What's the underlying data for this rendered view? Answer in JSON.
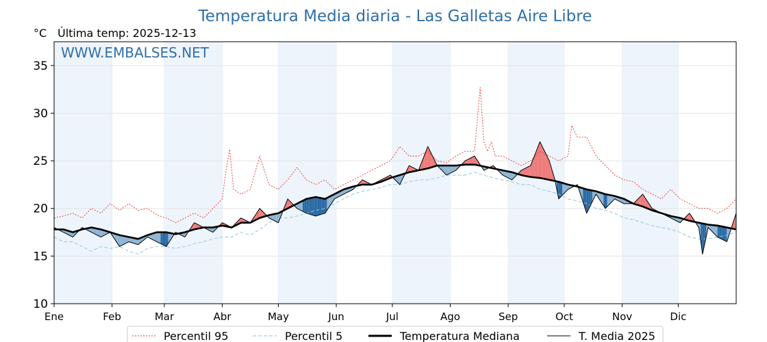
{
  "chart_data": {
    "type": "line",
    "title": "Temperatura Media diaria - Las Galletas Aire Libre",
    "unit_label": "°C",
    "last_temp_label": "Última temp: 2025-12-13",
    "watermark": "WWW.EMBALSES.NET",
    "ylim": [
      10,
      37.5
    ],
    "yticks": [
      10,
      15,
      20,
      25,
      30,
      35
    ],
    "xlim": [
      0,
      365
    ],
    "months": [
      "Ene",
      "Feb",
      "Mar",
      "Abr",
      "May",
      "Jun",
      "Jul",
      "Ago",
      "Sep",
      "Oct",
      "Nov",
      "Dic"
    ],
    "month_starts": [
      0,
      31,
      59,
      90,
      120,
      151,
      181,
      212,
      243,
      273,
      304,
      334
    ],
    "grid": true,
    "legend_position": "bottom",
    "colors": {
      "p95": "#e8322b",
      "p5": "#8ec6dc",
      "median": "#000000",
      "current": "#000000",
      "above": "#ee7b7b",
      "below": "#2b6aa3",
      "below_light": "#8fb4d4",
      "band": "#eef4fb",
      "title": "#2f6fa8"
    },
    "series": [
      {
        "name": "Percentil 95",
        "style": "dotted-red",
        "x": [
          0,
          5,
          10,
          15,
          20,
          25,
          30,
          35,
          40,
          45,
          50,
          55,
          60,
          65,
          70,
          75,
          80,
          85,
          90,
          92,
          94,
          96,
          100,
          105,
          110,
          115,
          120,
          125,
          130,
          135,
          140,
          145,
          150,
          155,
          160,
          165,
          170,
          175,
          180,
          185,
          190,
          195,
          200,
          205,
          210,
          215,
          220,
          225,
          228,
          230,
          232,
          234,
          236,
          240,
          245,
          250,
          255,
          260,
          265,
          270,
          275,
          277,
          280,
          285,
          290,
          295,
          300,
          305,
          310,
          315,
          320,
          325,
          330,
          335,
          340,
          345,
          350,
          355,
          360,
          365
        ],
        "values": [
          19.0,
          19.2,
          19.5,
          19.0,
          20.0,
          19.5,
          20.5,
          19.8,
          20.5,
          19.8,
          20.0,
          19.3,
          19.0,
          18.5,
          19.0,
          19.5,
          19.0,
          20.0,
          21.0,
          24.0,
          26.2,
          22.0,
          21.5,
          22.0,
          25.5,
          22.5,
          22.0,
          23.0,
          24.3,
          23.0,
          22.5,
          23.0,
          22.0,
          22.5,
          23.0,
          23.5,
          24.0,
          24.5,
          25.0,
          26.5,
          25.5,
          25.5,
          26.0,
          25.0,
          24.8,
          25.5,
          26.0,
          26.0,
          32.7,
          27.0,
          26.0,
          27.0,
          25.5,
          25.5,
          25.0,
          24.5,
          25.0,
          26.0,
          25.5,
          25.0,
          25.5,
          28.7,
          27.5,
          27.5,
          25.5,
          24.5,
          23.5,
          23.0,
          22.8,
          22.0,
          21.5,
          21.0,
          22.0,
          21.0,
          20.5,
          20.0,
          20.0,
          19.5,
          20.0,
          21.0
        ]
      },
      {
        "name": "Percentil 5",
        "style": "dashed-lightblue",
        "x": [
          0,
          5,
          10,
          15,
          20,
          25,
          30,
          35,
          40,
          45,
          50,
          55,
          60,
          65,
          70,
          75,
          80,
          85,
          90,
          95,
          100,
          105,
          110,
          115,
          120,
          125,
          130,
          135,
          140,
          145,
          150,
          155,
          160,
          165,
          170,
          175,
          180,
          185,
          190,
          195,
          200,
          205,
          210,
          215,
          220,
          225,
          230,
          235,
          240,
          245,
          250,
          255,
          260,
          265,
          270,
          275,
          280,
          285,
          290,
          295,
          300,
          305,
          310,
          315,
          320,
          325,
          330,
          335,
          340,
          345,
          350,
          355,
          360,
          365
        ],
        "values": [
          17.0,
          16.5,
          16.5,
          16.0,
          15.5,
          16.0,
          15.8,
          16.0,
          15.5,
          15.2,
          15.8,
          16.0,
          16.0,
          15.8,
          16.0,
          16.3,
          16.5,
          16.8,
          17.0,
          17.0,
          17.5,
          17.2,
          17.8,
          18.5,
          19.0,
          19.0,
          19.2,
          19.5,
          19.8,
          20.0,
          20.5,
          21.0,
          21.5,
          21.8,
          22.0,
          22.2,
          22.5,
          22.5,
          22.8,
          23.0,
          23.0,
          23.2,
          23.5,
          23.5,
          23.5,
          23.8,
          23.5,
          23.2,
          23.0,
          22.8,
          22.5,
          22.5,
          22.0,
          21.8,
          21.5,
          21.0,
          20.8,
          20.5,
          20.0,
          19.8,
          19.5,
          19.0,
          18.8,
          18.5,
          18.2,
          18.0,
          17.8,
          17.5,
          17.0,
          16.8,
          16.8,
          17.0,
          17.2,
          17.5
        ]
      },
      {
        "name": "Temperatura Mediana",
        "style": "thick-black",
        "x": [
          0,
          5,
          10,
          15,
          20,
          25,
          30,
          35,
          40,
          45,
          50,
          55,
          60,
          65,
          70,
          75,
          80,
          85,
          90,
          95,
          100,
          105,
          110,
          115,
          120,
          125,
          130,
          135,
          140,
          145,
          150,
          155,
          160,
          165,
          170,
          175,
          180,
          185,
          190,
          195,
          200,
          205,
          210,
          215,
          220,
          225,
          230,
          235,
          240,
          245,
          250,
          255,
          260,
          265,
          270,
          275,
          280,
          285,
          290,
          295,
          300,
          305,
          310,
          315,
          320,
          325,
          330,
          335,
          340,
          345,
          350,
          355,
          360,
          365
        ],
        "values": [
          17.8,
          17.8,
          17.5,
          17.8,
          18.0,
          17.8,
          17.5,
          17.2,
          17.0,
          16.8,
          17.2,
          17.5,
          17.5,
          17.3,
          17.5,
          17.8,
          18.0,
          18.0,
          18.2,
          18.0,
          18.5,
          18.5,
          19.0,
          19.3,
          19.5,
          20.0,
          20.5,
          21.0,
          21.2,
          21.0,
          21.5,
          22.0,
          22.3,
          22.5,
          22.5,
          22.8,
          23.2,
          23.5,
          23.8,
          24.0,
          24.2,
          24.5,
          24.5,
          24.5,
          24.6,
          24.6,
          24.4,
          24.2,
          24.0,
          23.8,
          23.5,
          23.3,
          23.2,
          23.0,
          22.8,
          22.5,
          22.3,
          22.0,
          21.8,
          21.5,
          21.3,
          21.0,
          20.5,
          20.2,
          19.8,
          19.5,
          19.2,
          19.0,
          18.7,
          18.5,
          18.3,
          18.2,
          18.0,
          17.8
        ]
      },
      {
        "name": "T. Media 2025",
        "style": "thin-black",
        "x": [
          0,
          5,
          10,
          15,
          20,
          25,
          30,
          35,
          40,
          45,
          50,
          55,
          60,
          65,
          70,
          75,
          80,
          85,
          90,
          95,
          100,
          105,
          110,
          115,
          120,
          125,
          130,
          135,
          140,
          145,
          150,
          155,
          160,
          165,
          170,
          175,
          180,
          185,
          190,
          195,
          200,
          205,
          210,
          215,
          220,
          225,
          230,
          235,
          240,
          245,
          250,
          255,
          260,
          265,
          268,
          270,
          275,
          280,
          285,
          290,
          295,
          300,
          305,
          310,
          315,
          320,
          325,
          330,
          335,
          340,
          345,
          347,
          350,
          355,
          360,
          365
        ],
        "values": [
          18.0,
          17.5,
          17.0,
          18.0,
          17.5,
          17.0,
          17.5,
          16.0,
          16.5,
          16.2,
          17.0,
          16.5,
          16.0,
          17.5,
          17.0,
          18.5,
          18.0,
          17.5,
          18.5,
          18.0,
          19.0,
          18.5,
          20.0,
          19.0,
          18.5,
          21.0,
          20.0,
          19.5,
          19.2,
          19.5,
          21.0,
          21.5,
          22.0,
          23.0,
          22.5,
          23.0,
          23.5,
          22.5,
          24.5,
          24.0,
          26.5,
          24.5,
          23.5,
          24.0,
          25.0,
          25.5,
          24.0,
          24.5,
          23.5,
          23.0,
          24.0,
          24.5,
          27.0,
          25.0,
          23.0,
          21.0,
          22.0,
          22.5,
          19.5,
          21.5,
          20.0,
          21.0,
          20.5,
          20.5,
          21.5,
          20.0,
          19.5,
          19.0,
          18.5,
          19.5,
          18.0,
          15.2,
          18.0,
          17.0,
          16.5,
          19.5
        ]
      }
    ]
  }
}
